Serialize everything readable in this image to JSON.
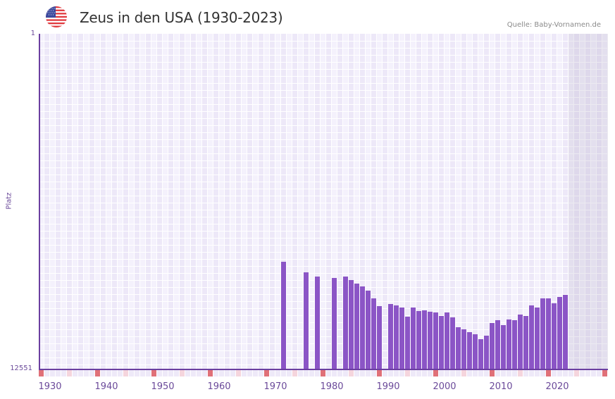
{
  "header": {
    "title": "Zeus in den USA (1930-2023)",
    "source": "Quelle: Baby-Vornamen.de",
    "flag_icon": "us-flag-icon"
  },
  "colors": {
    "bar": "#8B55C6",
    "axis": "#6B3FA0",
    "marker_decade": "#E07078",
    "marker_half": "#F5D5DD",
    "marker_other": "#EEE9F8"
  },
  "chart_data": {
    "type": "bar",
    "title": "Zeus in den USA (1930-2023)",
    "xlabel": "",
    "ylabel": "Platz",
    "y_inverted": true,
    "ylim": [
      1,
      12551
    ],
    "ytick_labels": [
      "1",
      "12551"
    ],
    "xlim": [
      1928,
      2028
    ],
    "xtick_labels": [
      "1930",
      "1940",
      "1950",
      "1960",
      "1970",
      "1980",
      "1990",
      "2000",
      "2010",
      "2020"
    ],
    "grid": true,
    "greyed_future_from": 2022,
    "x": [
      1971,
      1975,
      1977,
      1980,
      1982,
      1983,
      1984,
      1985,
      1986,
      1987,
      1988,
      1990,
      1991,
      1992,
      1993,
      1994,
      1995,
      1996,
      1997,
      1998,
      1999,
      2000,
      2001,
      2002,
      2003,
      2004,
      2005,
      2006,
      2007,
      2008,
      2009,
      2010,
      2011,
      2012,
      2013,
      2014,
      2015,
      2016,
      2017,
      2018,
      2019,
      2020,
      2021
    ],
    "values": [
      8525,
      8919,
      9077,
      9130,
      9077,
      9209,
      9341,
      9446,
      9604,
      9893,
      10183,
      10104,
      10157,
      10236,
      10578,
      10236,
      10367,
      10341,
      10393,
      10420,
      10551,
      10420,
      10604,
      10972,
      11051,
      11156,
      11235,
      11419,
      11288,
      10814,
      10709,
      10893,
      10683,
      10709,
      10498,
      10551,
      10157,
      10236,
      9893,
      9893,
      10078,
      9841,
      9762
    ]
  }
}
